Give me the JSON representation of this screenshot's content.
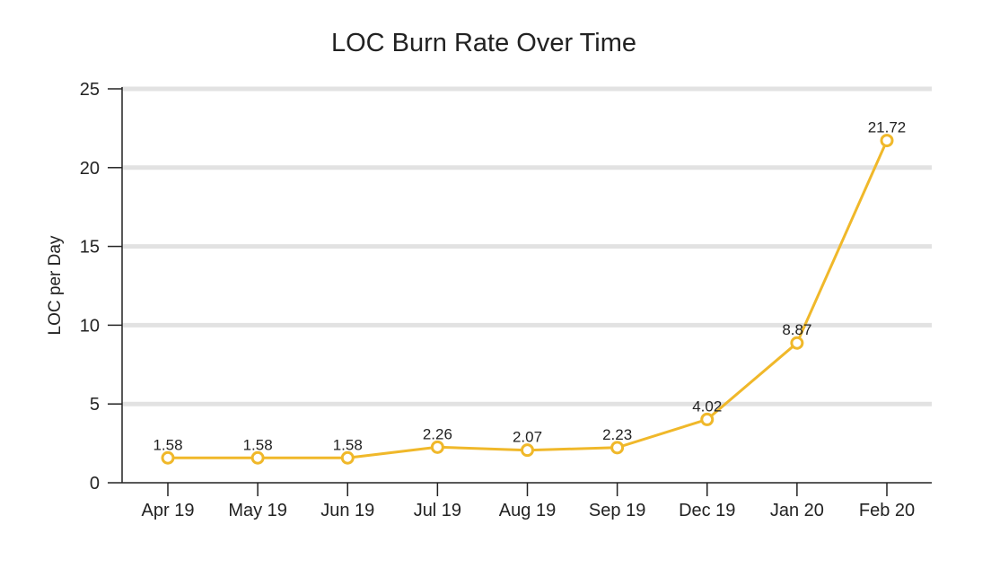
{
  "chart_data": {
    "type": "line",
    "title": "LOC Burn Rate Over Time",
    "xlabel": "",
    "ylabel": "LOC per Day",
    "categories": [
      "Apr 19",
      "May 19",
      "Jun 19",
      "Jul 19",
      "Aug 19",
      "Sep 19",
      "Dec 19",
      "Jan 20",
      "Feb 20"
    ],
    "series": [
      {
        "values": [
          1.58,
          1.58,
          1.58,
          2.26,
          2.07,
          2.23,
          4.02,
          8.87,
          21.72
        ],
        "data_labels": [
          "1.58",
          "1.58",
          "1.58",
          "2.26",
          "2.07",
          "2.23",
          "4.02",
          "8.87",
          "21.72"
        ],
        "color": "#f0b82a"
      }
    ],
    "ylim": [
      0,
      25
    ],
    "yticks": [
      0,
      5,
      10,
      15,
      20,
      25
    ],
    "grid": true,
    "legend": "none"
  }
}
